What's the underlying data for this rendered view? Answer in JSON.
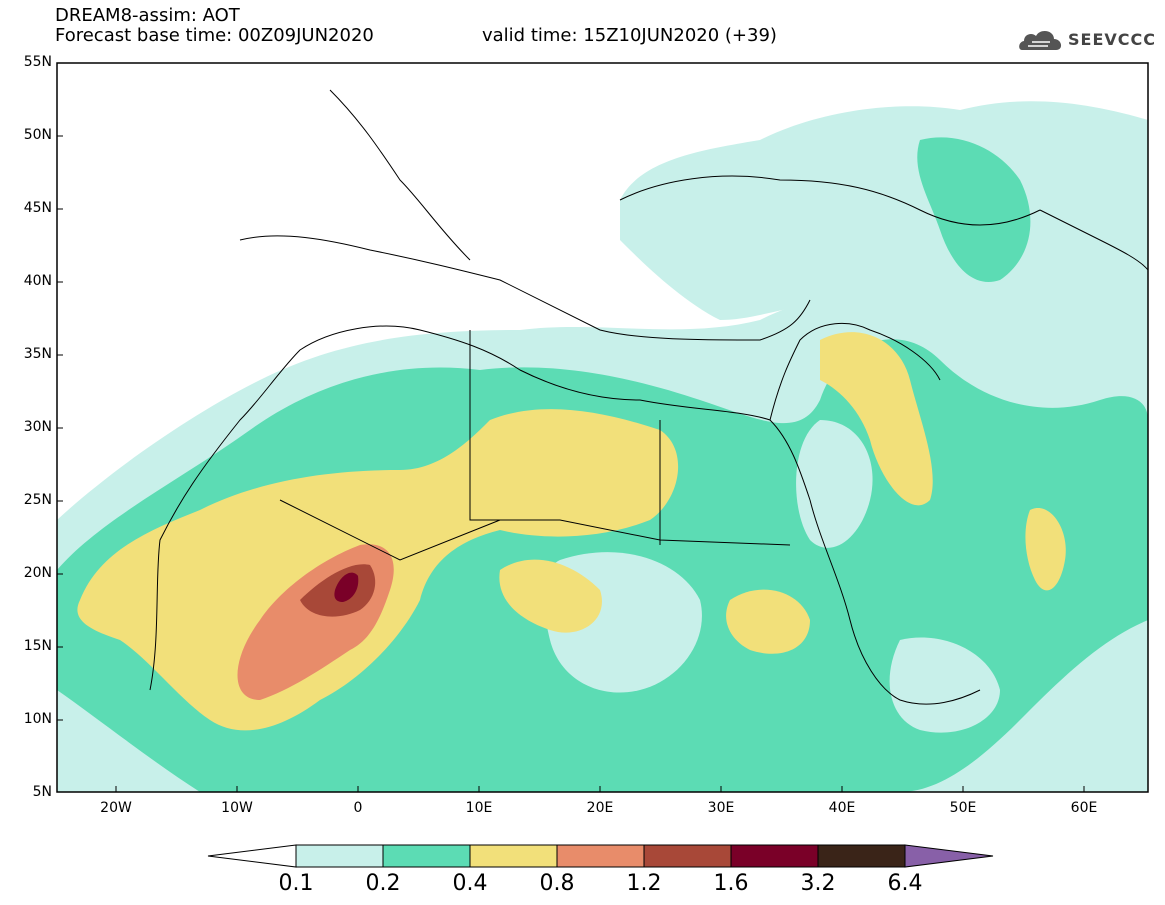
{
  "header": {
    "line1": "DREAM8-assim: AOT",
    "base": "Forecast base time: 00Z09JUN2020",
    "valid": "valid time: 15Z10JUN2020 (+39)",
    "logo": "SEEVCCC",
    "logo_icon": "cloud-icon"
  },
  "axes": {
    "lat_labels": [
      "55N",
      "50N",
      "45N",
      "40N",
      "35N",
      "30N",
      "25N",
      "20N",
      "15N",
      "10N",
      "5N"
    ],
    "lon_labels": [
      "20W",
      "10W",
      "0",
      "10E",
      "20E",
      "30E",
      "40E",
      "50E",
      "60E"
    ]
  },
  "colorbar": {
    "labels": [
      "0.1",
      "0.2",
      "0.4",
      "0.8",
      "1.2",
      "1.6",
      "3.2",
      "6.4"
    ],
    "colors": [
      "#ffffff",
      "#c8f0ea",
      "#5cdcb4",
      "#f2e07a",
      "#e88c6a",
      "#a84838",
      "#7a0028",
      "#3a2418",
      "#8860a8"
    ]
  },
  "legend_colors": {
    "light": "#c8f0ea",
    "green": "#5cdcb4",
    "yellow": "#f2e07a",
    "orange": "#e88c6a",
    "red": "#a84838",
    "dark": "#7a0028"
  }
}
